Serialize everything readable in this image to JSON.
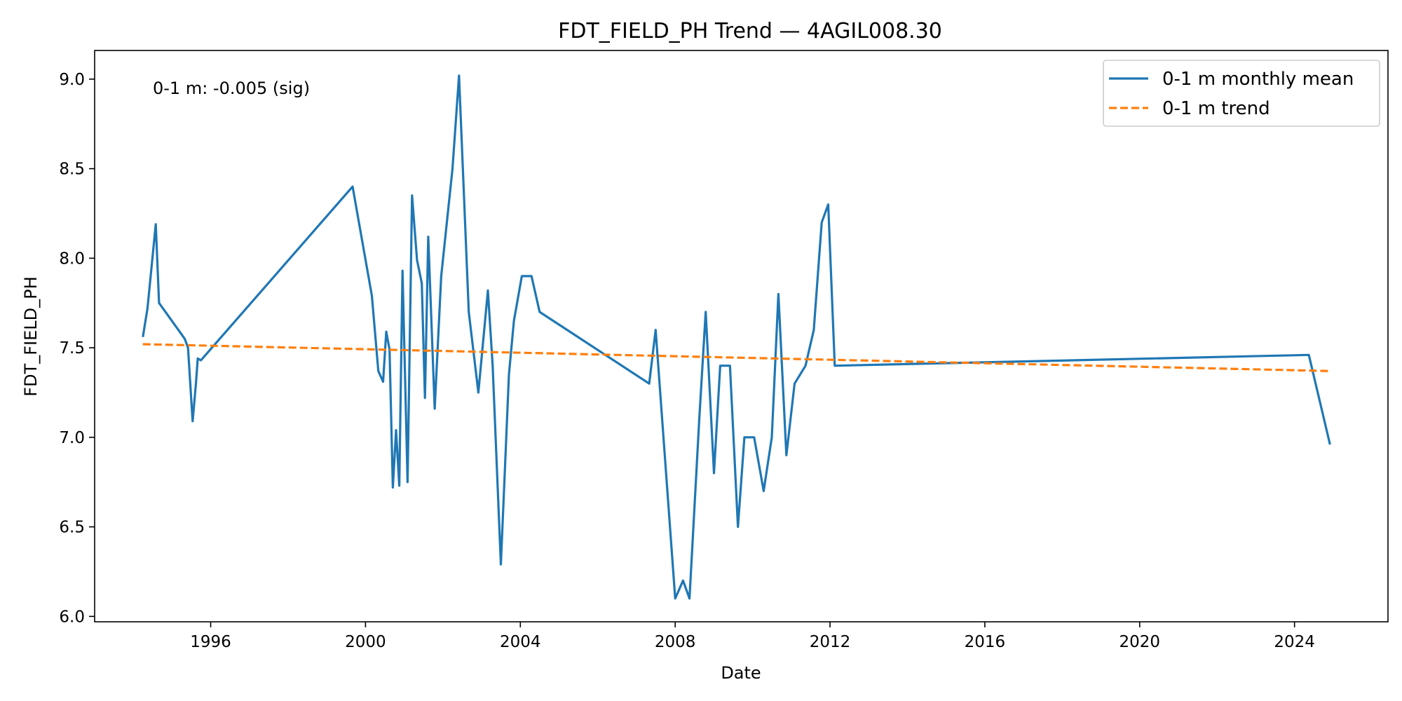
{
  "chart_data": {
    "type": "line",
    "title": "FDT_FIELD_PH Trend — 4AGIL008.30",
    "xlabel": "Date",
    "ylabel": "FDT_FIELD_PH",
    "x_axis": "date",
    "xlim": [
      "1993-01-01",
      "2026-06-01"
    ],
    "ylim": [
      5.97,
      9.16
    ],
    "x_ticks": [
      "1996-01-01",
      "2000-01-01",
      "2004-01-01",
      "2008-01-01",
      "2012-01-01",
      "2016-01-01",
      "2020-01-01",
      "2024-01-01"
    ],
    "x_tick_labels": [
      "1996",
      "2000",
      "2004",
      "2008",
      "2012",
      "2016",
      "2020",
      "2024"
    ],
    "y_ticks": [
      6.0,
      6.5,
      7.0,
      7.5,
      8.0,
      8.5,
      9.0
    ],
    "y_tick_labels": [
      "6.0",
      "6.5",
      "7.0",
      "7.5",
      "8.0",
      "8.5",
      "9.0"
    ],
    "grid": false,
    "legend_position": "top-right",
    "annotation": "0-1 m: -0.005 (sig)",
    "series": [
      {
        "name": "0-1 m monthly mean",
        "color": "#1f77b4",
        "style": "solid",
        "points": [
          [
            "1994-04-01",
            7.56
          ],
          [
            "1994-05-15",
            7.72
          ],
          [
            "1994-08-01",
            8.19
          ],
          [
            "1994-09-01",
            7.75
          ],
          [
            "1995-05-01",
            7.55
          ],
          [
            "1995-06-01",
            7.5
          ],
          [
            "1995-07-15",
            7.09
          ],
          [
            "1995-08-15",
            7.3
          ],
          [
            "1995-09-01",
            7.44
          ],
          [
            "1995-10-01",
            7.43
          ],
          [
            "1999-09-01",
            8.4
          ],
          [
            "2000-03-01",
            7.79
          ],
          [
            "2000-05-01",
            7.37
          ],
          [
            "2000-06-15",
            7.31
          ],
          [
            "2000-07-15",
            7.59
          ],
          [
            "2000-08-15",
            7.49
          ],
          [
            "2000-09-15",
            6.72
          ],
          [
            "2000-10-15",
            7.04
          ],
          [
            "2000-11-15",
            6.73
          ],
          [
            "2000-12-15",
            7.93
          ],
          [
            "2001-02-01",
            6.75
          ],
          [
            "2001-03-15",
            8.35
          ],
          [
            "2001-05-01",
            7.99
          ],
          [
            "2001-06-15",
            7.86
          ],
          [
            "2001-07-15",
            7.22
          ],
          [
            "2001-08-15",
            8.12
          ],
          [
            "2001-10-15",
            7.16
          ],
          [
            "2001-12-15",
            7.9
          ],
          [
            "2002-04-01",
            8.5
          ],
          [
            "2002-06-01",
            9.02
          ],
          [
            "2002-09-01",
            7.7
          ],
          [
            "2002-12-01",
            7.25
          ],
          [
            "2003-03-01",
            7.82
          ],
          [
            "2003-04-15",
            7.4
          ],
          [
            "2003-07-01",
            6.29
          ],
          [
            "2003-09-15",
            7.35
          ],
          [
            "2003-11-01",
            7.65
          ],
          [
            "2004-01-15",
            7.9
          ],
          [
            "2004-04-15",
            7.9
          ],
          [
            "2004-07-01",
            7.7
          ],
          [
            "2007-05-01",
            7.3
          ],
          [
            "2007-07-01",
            7.6
          ],
          [
            "2008-01-01",
            6.1
          ],
          [
            "2008-03-15",
            6.2
          ],
          [
            "2008-05-15",
            6.1
          ],
          [
            "2008-08-15",
            7.1
          ],
          [
            "2008-10-15",
            7.7
          ],
          [
            "2009-01-01",
            6.8
          ],
          [
            "2009-03-01",
            7.4
          ],
          [
            "2009-06-01",
            7.4
          ],
          [
            "2009-08-15",
            6.5
          ],
          [
            "2009-10-15",
            7.0
          ],
          [
            "2010-01-15",
            7.0
          ],
          [
            "2010-04-15",
            6.7
          ],
          [
            "2010-07-01",
            7.0
          ],
          [
            "2010-09-01",
            7.8
          ],
          [
            "2010-11-15",
            6.9
          ],
          [
            "2011-02-01",
            7.3
          ],
          [
            "2011-05-15",
            7.4
          ],
          [
            "2011-08-01",
            7.6
          ],
          [
            "2011-10-15",
            8.2
          ],
          [
            "2011-12-15",
            8.3
          ],
          [
            "2012-02-15",
            7.4
          ],
          [
            "2024-05-15",
            7.46
          ],
          [
            "2024-12-01",
            6.96
          ]
        ]
      },
      {
        "name": "0-1 m trend",
        "color": "#ff7f0e",
        "style": "dashed",
        "points": [
          [
            "1994-04-01",
            7.52
          ],
          [
            "2024-12-01",
            7.37
          ]
        ]
      }
    ]
  }
}
